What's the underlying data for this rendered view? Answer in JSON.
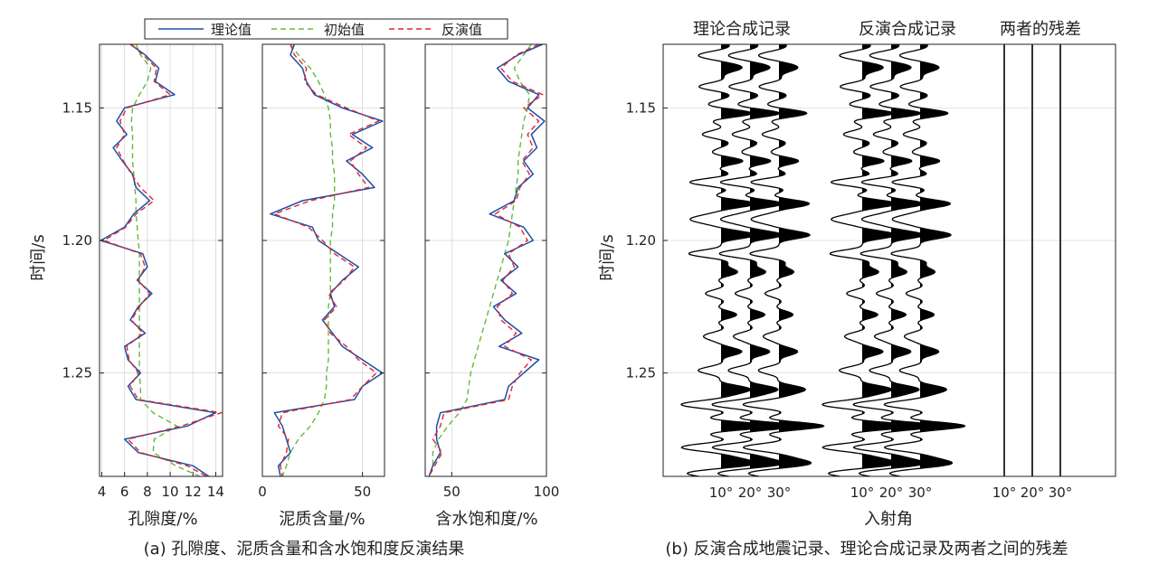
{
  "legend": [
    {
      "label": "理论值",
      "color": "#1f4ea6",
      "dash": "solid"
    },
    {
      "label": "初始值",
      "color": "#67b83b",
      "dash": "dash"
    },
    {
      "label": "反演值",
      "color": "#e0262b",
      "dash": "dash"
    }
  ],
  "chart_data": [
    {
      "type": "line",
      "title": "",
      "xlabel": "孔隙度/%",
      "ylabel": "时间/s",
      "xlim": [
        3.8,
        14.6
      ],
      "xticks": [
        4,
        6,
        8,
        10,
        12,
        14
      ],
      "ylim": [
        1.126,
        1.289
      ],
      "yticks": [
        1.15,
        1.2,
        1.25
      ],
      "ytick_labels": [
        "1.15",
        "1.20",
        "1.25"
      ],
      "time": [
        1.126,
        1.13,
        1.135,
        1.14,
        1.145,
        1.15,
        1.155,
        1.16,
        1.165,
        1.17,
        1.175,
        1.18,
        1.185,
        1.19,
        1.195,
        1.2,
        1.205,
        1.21,
        1.215,
        1.22,
        1.225,
        1.23,
        1.235,
        1.24,
        1.245,
        1.25,
        1.255,
        1.26,
        1.265,
        1.27,
        1.275,
        1.28,
        1.285,
        1.289
      ],
      "series": [
        {
          "name": "理论值",
          "values": [
            6.5,
            7.8,
            9.0,
            8.7,
            10.4,
            6.0,
            5.3,
            6.2,
            5.0,
            5.8,
            6.7,
            7.0,
            8.2,
            6.8,
            6.0,
            3.9,
            7.6,
            8.0,
            7.1,
            8.4,
            7.2,
            6.5,
            7.8,
            6.0,
            6.3,
            7.4,
            6.3,
            7.0,
            14.0,
            11.5,
            6.0,
            7.2,
            12.0,
            13.4
          ]
        },
        {
          "name": "初始值",
          "values": [
            7.0,
            7.4,
            8.3,
            8.0,
            7.3,
            6.7,
            6.6,
            6.7,
            6.7,
            6.7,
            6.8,
            6.9,
            7.0,
            7.0,
            7.1,
            7.2,
            7.3,
            7.3,
            7.3,
            7.3,
            7.3,
            7.3,
            7.3,
            7.3,
            7.3,
            7.3,
            7.4,
            7.4,
            8.5,
            10.6,
            8.6,
            8.5,
            10.5,
            12.6
          ]
        },
        {
          "name": "反演值",
          "values": [
            6.6,
            7.6,
            8.8,
            8.6,
            10.0,
            6.2,
            5.6,
            6.0,
            5.3,
            5.9,
            6.6,
            7.4,
            8.6,
            7.0,
            6.1,
            4.2,
            7.4,
            7.8,
            7.2,
            8.2,
            7.3,
            6.6,
            7.6,
            6.2,
            6.4,
            7.2,
            6.5,
            7.2,
            14.5,
            11.0,
            6.3,
            7.4,
            11.5,
            13.2
          ]
        }
      ]
    },
    {
      "type": "line",
      "title": "",
      "xlabel": "泥质含量/%",
      "xlim": [
        0,
        61
      ],
      "xticks": [
        0,
        50
      ],
      "ylim": [
        1.126,
        1.289
      ],
      "time": [
        1.126,
        1.13,
        1.135,
        1.14,
        1.145,
        1.15,
        1.155,
        1.16,
        1.165,
        1.17,
        1.175,
        1.18,
        1.185,
        1.19,
        1.195,
        1.2,
        1.205,
        1.21,
        1.215,
        1.22,
        1.225,
        1.23,
        1.235,
        1.24,
        1.245,
        1.25,
        1.255,
        1.26,
        1.265,
        1.27,
        1.275,
        1.28,
        1.285,
        1.289
      ],
      "series": [
        {
          "name": "理论值",
          "values": [
            16,
            14,
            20,
            22,
            26,
            40,
            60,
            45,
            55,
            42,
            50,
            56,
            20,
            4,
            25,
            28,
            38,
            48,
            40,
            34,
            36,
            30,
            35,
            40,
            50,
            60,
            50,
            46,
            6,
            10,
            12,
            14,
            8,
            9
          ]
        },
        {
          "name": "初始值",
          "values": [
            14,
            18,
            24,
            28,
            31,
            33,
            34,
            34,
            35,
            35,
            36,
            36,
            36,
            35,
            35,
            34,
            34,
            34,
            34,
            34,
            33,
            33,
            33,
            33,
            33,
            32,
            32,
            31,
            28,
            24,
            18,
            14,
            12,
            10
          ]
        },
        {
          "name": "反演值",
          "values": [
            14,
            16,
            22,
            21,
            27,
            42,
            58,
            43,
            52,
            44,
            48,
            53,
            24,
            6,
            23,
            30,
            36,
            46,
            41,
            33,
            37,
            31,
            34,
            42,
            48,
            57,
            50,
            44,
            10,
            8,
            13,
            12,
            9,
            10
          ]
        }
      ]
    },
    {
      "type": "line",
      "title": "",
      "xlabel": "含水饱和度/%",
      "xlim": [
        36,
        100
      ],
      "xticks": [
        50,
        100
      ],
      "ylim": [
        1.126,
        1.289
      ],
      "time": [
        1.126,
        1.13,
        1.135,
        1.14,
        1.145,
        1.15,
        1.155,
        1.16,
        1.165,
        1.17,
        1.175,
        1.18,
        1.185,
        1.19,
        1.195,
        1.2,
        1.205,
        1.21,
        1.215,
        1.22,
        1.225,
        1.23,
        1.235,
        1.24,
        1.245,
        1.25,
        1.255,
        1.26,
        1.265,
        1.27,
        1.275,
        1.28,
        1.285,
        1.289
      ],
      "series": [
        {
          "name": "理论值",
          "values": [
            98,
            85,
            74,
            80,
            96,
            90,
            99,
            92,
            95,
            88,
            93,
            85,
            83,
            70,
            88,
            93,
            78,
            85,
            76,
            84,
            72,
            78,
            87,
            75,
            96,
            88,
            80,
            78,
            44,
            42,
            42,
            44,
            40,
            38
          ]
        },
        {
          "name": "初始值",
          "values": [
            92,
            88,
            83,
            86,
            91,
            90,
            88,
            87,
            86,
            85,
            85,
            84,
            83,
            82,
            81,
            80,
            78,
            76,
            74,
            72,
            70,
            68,
            66,
            64,
            62,
            60,
            59,
            58,
            54,
            48,
            43,
            40,
            40,
            38
          ]
        },
        {
          "name": "反演值",
          "values": [
            96,
            84,
            76,
            82,
            98,
            88,
            96,
            90,
            93,
            87,
            91,
            86,
            84,
            73,
            86,
            90,
            80,
            83,
            77,
            82,
            74,
            76,
            84,
            78,
            92,
            86,
            82,
            80,
            46,
            44,
            40,
            45,
            41,
            38
          ]
        }
      ]
    }
  ],
  "caption_a": "(a) 孔隙度、泥质含量和含水饱和度反演结果",
  "panel_b": {
    "group_titles": [
      "理论合成记录",
      "反演合成记录",
      "两者的残差"
    ],
    "ylabel": "时间/s",
    "ytick_labels": [
      "1.15",
      "1.20",
      "1.25"
    ],
    "angle_labels": [
      "10°",
      "20°",
      "30°"
    ],
    "xlabel": "入射角",
    "caption": "(b) 反演合成地震记录、理论合成记录及两者之间的残差",
    "wavelet_events": [
      {
        "t": 1.13,
        "amp": -0.6
      },
      {
        "t": 1.135,
        "amp": 0.5
      },
      {
        "t": 1.142,
        "amp": -0.7
      },
      {
        "t": 1.152,
        "amp": 1.0
      },
      {
        "t": 1.16,
        "amp": -0.6
      },
      {
        "t": 1.17,
        "amp": 0.7
      },
      {
        "t": 1.178,
        "amp": -1.0
      },
      {
        "t": 1.186,
        "amp": 1.0
      },
      {
        "t": 1.192,
        "amp": -0.8
      },
      {
        "t": 1.198,
        "amp": 1.0
      },
      {
        "t": 1.205,
        "amp": -1.0
      },
      {
        "t": 1.212,
        "amp": 0.5
      },
      {
        "t": 1.22,
        "amp": -0.5
      },
      {
        "t": 1.228,
        "amp": 0.5
      },
      {
        "t": 1.236,
        "amp": -0.5
      },
      {
        "t": 1.242,
        "amp": 0.6
      },
      {
        "t": 1.249,
        "amp": -0.7
      },
      {
        "t": 1.256,
        "amp": 0.8
      },
      {
        "t": 1.262,
        "amp": -1.2
      },
      {
        "t": 1.27,
        "amp": 1.6
      },
      {
        "t": 1.278,
        "amp": -1.2
      },
      {
        "t": 1.284,
        "amp": 0.7
      },
      {
        "t": 1.288,
        "amp": -0.8
      }
    ]
  }
}
